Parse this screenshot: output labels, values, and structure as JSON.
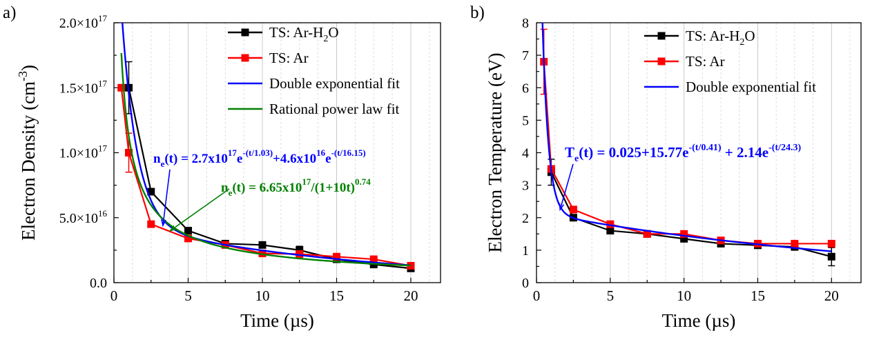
{
  "chart_data": [
    {
      "panel_label": "a)",
      "type": "line",
      "xlabel": "Time (µs)",
      "ylabel": {
        "main": "Electron Density (cm",
        "sup": "-3",
        "close": ")"
      },
      "xlim": [
        0,
        22
      ],
      "ylim": [
        0,
        2e+17
      ],
      "xticks": [
        0,
        5,
        10,
        15,
        20
      ],
      "xtick_labels": [
        "0",
        "5",
        "10",
        "15",
        "20"
      ],
      "yticks": [
        0,
        5e+16,
        1e+17,
        1.5e+17,
        2e+17
      ],
      "ytick_labels": [
        {
          "base": "0.0",
          "sup": ""
        },
        {
          "base": "5.0×10",
          "sup": "16"
        },
        {
          "base": "1.0×10",
          "sup": "17"
        },
        {
          "base": "1.5×10",
          "sup": "17"
        },
        {
          "base": "2.0×10",
          "sup": "17"
        }
      ],
      "grid": "vertical",
      "legend_position": "top-right",
      "series": [
        {
          "name": "TS: Ar-H2O",
          "legend": {
            "base": "TS: Ar-H",
            "sub": "2",
            "tail": "O"
          },
          "color": "#000000",
          "style": "line+markers",
          "x": [
            1,
            2.5,
            5,
            7.5,
            10,
            12.5,
            15,
            17.5,
            20
          ],
          "y": [
            1.5e+17,
            7e+16,
            4e+16,
            3e+16,
            2.9e+16,
            2.5e+16,
            1.8e+16,
            1.4e+16,
            1.1e+16
          ],
          "err": [
            2e+16,
            0,
            0,
            0,
            0,
            3000000000000000.0,
            0,
            0,
            0
          ]
        },
        {
          "name": "TS: Ar",
          "legend": {
            "base": "TS: Ar",
            "sub": "",
            "tail": ""
          },
          "color": "#ff0000",
          "style": "line+markers",
          "x": [
            0.5,
            1,
            2.5,
            5,
            7.5,
            10,
            12.5,
            15,
            17.5,
            20
          ],
          "y": [
            1.5e+17,
            1e+17,
            4.5e+16,
            3.4e+16,
            2.9e+16,
            2.25e+16,
            2.2e+16,
            2e+16,
            1.8e+16,
            1.3e+16
          ],
          "err": [
            0,
            1.5e+16,
            0,
            0,
            0,
            0,
            0,
            0,
            0,
            0
          ]
        },
        {
          "name": "Double exponential fit",
          "legend": {
            "base": "Double exponential fit",
            "sub": "",
            "tail": ""
          },
          "color": "#0000ff",
          "style": "line",
          "model": {
            "kind": "double_exp",
            "c": 0,
            "a1": 2.7e+17,
            "t1": 1.03,
            "a2": 4.6e+16,
            "t2": 16.15
          },
          "x_range": [
            0.5,
            20
          ]
        },
        {
          "name": "Rational power law fit",
          "legend": {
            "base": "Rational power law fit",
            "sub": "",
            "tail": ""
          },
          "color": "#008000",
          "style": "line",
          "model": {
            "kind": "rational_power",
            "a": 6.65e+17,
            "k": 10,
            "p": 0.74
          },
          "x_range": [
            0.5,
            20
          ]
        }
      ],
      "annotations": [
        {
          "id": "fit-a1",
          "color": "#0000ff",
          "parts": [
            {
              "t": "n"
            },
            {
              "t": "e",
              "sub": true
            },
            {
              "t": "(t) = 2.7x10"
            },
            {
              "t": "17",
              "sup": true
            },
            {
              "t": "e"
            },
            {
              "t": "-(t/1.03)",
              "sup": true
            },
            {
              "t": "+4.6x10"
            },
            {
              "t": "16",
              "sup": true
            },
            {
              "t": "e"
            },
            {
              "t": "-(t/16.15)",
              "sup": true
            }
          ],
          "arrow_to": [
            3.3,
            4.4e+16
          ]
        },
        {
          "id": "fit-a2",
          "color": "#008000",
          "parts": [
            {
              "t": "n"
            },
            {
              "t": "e",
              "sub": true
            },
            {
              "t": "(t) = 6.65x10"
            },
            {
              "t": "17",
              "sup": true
            },
            {
              "t": "/(1+10t)"
            },
            {
              "t": "0.74",
              "sup": true
            }
          ],
          "arrow_to": [
            3.8,
            4e+16
          ]
        }
      ]
    },
    {
      "panel_label": "b)",
      "type": "line",
      "xlabel": "Time (µs)",
      "ylabel": {
        "main": "Electron Temperature (eV)",
        "sup": "",
        "close": ""
      },
      "xlim": [
        0,
        22
      ],
      "ylim": [
        0,
        8
      ],
      "xticks": [
        0,
        5,
        10,
        15,
        20
      ],
      "xtick_labels": [
        "0",
        "5",
        "10",
        "15",
        "20"
      ],
      "yticks": [
        0,
        1,
        2,
        3,
        4,
        5,
        6,
        7,
        8
      ],
      "ytick_labels": [
        {
          "base": "0",
          "sup": ""
        },
        {
          "base": "1",
          "sup": ""
        },
        {
          "base": "2",
          "sup": ""
        },
        {
          "base": "3",
          "sup": ""
        },
        {
          "base": "4",
          "sup": ""
        },
        {
          "base": "5",
          "sup": ""
        },
        {
          "base": "6",
          "sup": ""
        },
        {
          "base": "7",
          "sup": ""
        },
        {
          "base": "8",
          "sup": ""
        }
      ],
      "grid": "vertical",
      "legend_position": "top-right",
      "series": [
        {
          "name": "TS: Ar-H2O",
          "legend": {
            "base": "TS: Ar-H",
            "sub": "2",
            "tail": "O"
          },
          "color": "#000000",
          "style": "line+markers",
          "x": [
            1,
            2.5,
            5,
            7.5,
            10,
            12.5,
            15,
            17.5,
            20
          ],
          "y": [
            3.4,
            2.0,
            1.6,
            1.5,
            1.35,
            1.2,
            1.15,
            1.1,
            0.8
          ],
          "err": [
            0.4,
            0,
            0,
            0,
            0,
            0,
            0,
            0,
            0.28
          ]
        },
        {
          "name": "TS: Ar",
          "legend": {
            "base": "TS: Ar",
            "sub": "",
            "tail": ""
          },
          "color": "#ff0000",
          "style": "line+markers",
          "x": [
            0.5,
            1,
            2.5,
            5,
            7.5,
            10,
            12.5,
            15,
            17.5,
            20
          ],
          "y": [
            6.8,
            3.5,
            2.25,
            1.8,
            1.5,
            1.5,
            1.3,
            1.2,
            1.2,
            1.2
          ],
          "err": [
            1.0,
            0,
            0,
            0,
            0,
            0,
            0,
            0,
            0,
            0
          ]
        },
        {
          "name": "Double exponential fit",
          "legend": {
            "base": "Double exponential fit",
            "sub": "",
            "tail": ""
          },
          "color": "#0000ff",
          "style": "line",
          "model": {
            "kind": "double_exp",
            "c": 0.025,
            "a1": 15.77,
            "t1": 0.41,
            "a2": 2.14,
            "t2": 24.3
          },
          "x_range": [
            0.4,
            20
          ]
        }
      ],
      "annotations": [
        {
          "id": "fit-b1",
          "color": "#0000ff",
          "parts": [
            {
              "t": "T"
            },
            {
              "t": "e",
              "sub": true
            },
            {
              "t": "(t) = 0.025+15.77e"
            },
            {
              "t": "-(t/0.41)",
              "sup": true
            },
            {
              "t": " + 2.14e"
            },
            {
              "t": "-(t/24.3)",
              "sup": true
            }
          ],
          "arrow_to": [
            1.6,
            2.25
          ]
        }
      ]
    }
  ]
}
